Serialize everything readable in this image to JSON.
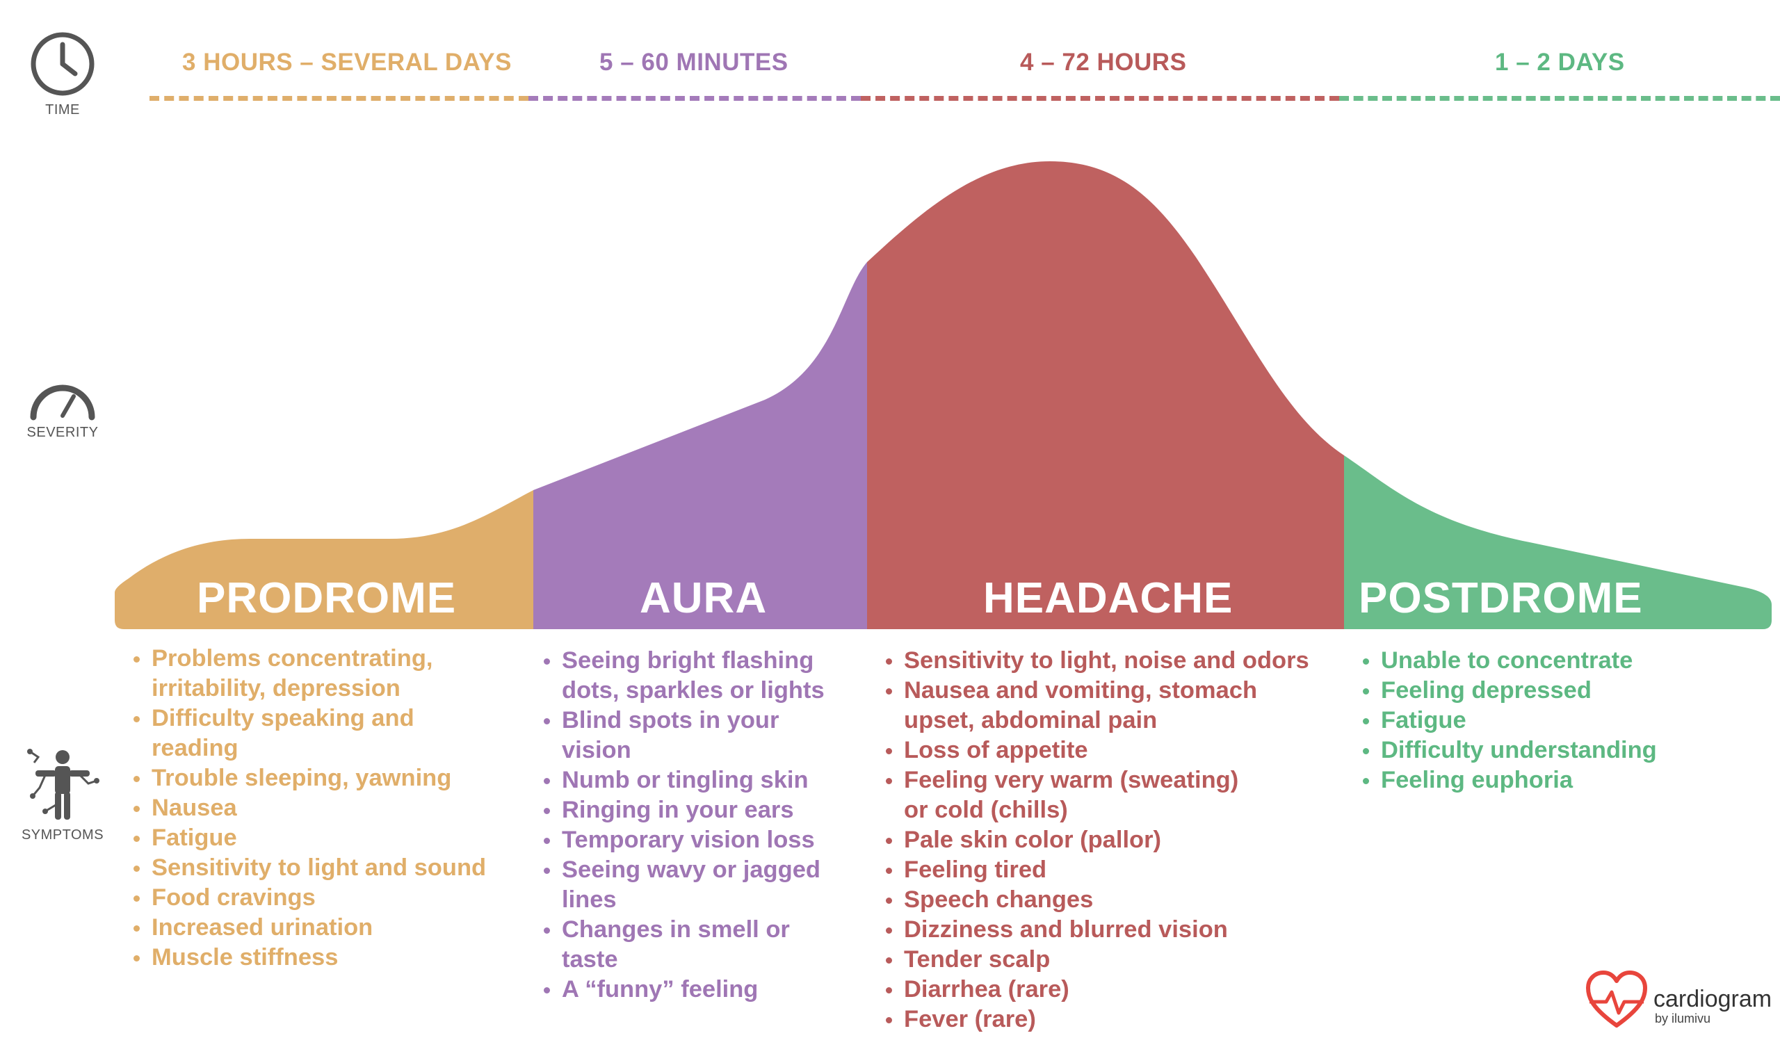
{
  "colors": {
    "prodrome": "#DFAE6B",
    "aura": "#A47BBA",
    "headache": "#BF6160",
    "postdrome": "#6ABD8B",
    "prodrome_text": "#E0AE69",
    "aura_text": "#9F76B4",
    "headache_text": "#B85A5A",
    "postdrome_text": "#5DB882",
    "icon": "#555555"
  },
  "sidebar": {
    "time_icon": "clock-icon",
    "time_label": "TIME",
    "severity_icon": "gauge-icon",
    "severity_label": "SEVERITY",
    "symptoms_icon": "body-figure-icon",
    "symptoms_label": "SYMPTOMS"
  },
  "phases": [
    {
      "key": "prodrome",
      "title": "PRODROME",
      "duration": "3 HOURS – SEVERAL DAYS",
      "symptoms": [
        "Problems concentrating,",
        "irritability, depression",
        "Difficulty speaking and",
        "reading",
        "Trouble sleeping, yawning",
        "Nausea",
        "Fatigue",
        "Sensitivity to light and sound",
        "Food cravings",
        "Increased urination",
        "Muscle stiffness"
      ],
      "bullets": [
        true,
        false,
        true,
        false,
        true,
        true,
        true,
        true,
        true,
        true,
        true
      ]
    },
    {
      "key": "aura",
      "title": "AURA",
      "duration": "5 – 60 MINUTES",
      "symptoms": [
        "Seeing bright flashing",
        "dots, sparkles or lights",
        "Blind spots in your",
        "vision",
        "Numb or tingling skin",
        "Ringing in your ears",
        "Temporary vision loss",
        "Seeing wavy or jagged",
        "lines",
        "Changes in smell or",
        "taste",
        "A “funny” feeling"
      ],
      "bullets": [
        true,
        false,
        true,
        false,
        true,
        true,
        true,
        true,
        false,
        true,
        false,
        true
      ]
    },
    {
      "key": "headache",
      "title": "HEADACHE",
      "duration": "4 – 72 HOURS",
      "symptoms": [
        "Sensitivity to light, noise and odors",
        "Nausea and vomiting, stomach",
        "upset, abdominal pain",
        "Loss of appetite",
        "Feeling very warm (sweating)",
        "or cold (chills)",
        "Pale skin color (pallor)",
        "Feeling tired",
        "Speech changes",
        "Dizziness and blurred vision",
        "Tender scalp",
        "Diarrhea (rare)",
        "Fever (rare)"
      ],
      "bullets": [
        true,
        true,
        false,
        true,
        true,
        false,
        true,
        true,
        true,
        true,
        true,
        true,
        true
      ]
    },
    {
      "key": "postdrome",
      "title": "POSTDROME",
      "duration": "1 – 2 DAYS",
      "symptoms": [
        "Unable to concentrate",
        "Feeling depressed",
        "Fatigue",
        "Difficulty understanding",
        "Feeling euphoria"
      ],
      "bullets": [
        true,
        true,
        true,
        true,
        true
      ]
    }
  ],
  "brand": {
    "icon": "heart-pulse-icon",
    "name": "cardiogram",
    "sub": "by ilumivu"
  }
}
